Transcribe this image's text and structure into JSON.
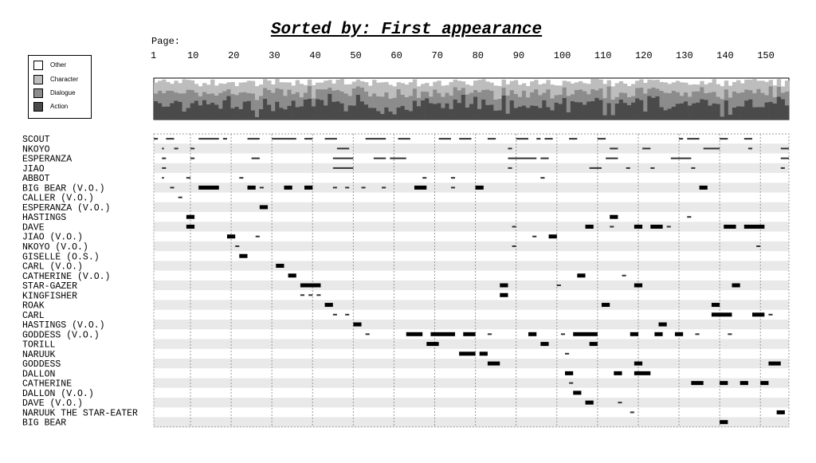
{
  "chart_data": {
    "type": "timeline",
    "title": "Sorted by: First appearance",
    "xlabel": "Page:",
    "x_ticks": [
      1,
      10,
      20,
      30,
      40,
      50,
      60,
      70,
      80,
      90,
      100,
      110,
      120,
      130,
      140,
      150
    ],
    "xlim": [
      1,
      157
    ],
    "legend": {
      "placement": "top-left",
      "items": [
        {
          "label": "Other",
          "color": "#ffffff"
        },
        {
          "label": "Character",
          "color": "#bdbdbd"
        },
        {
          "label": "Dialogue",
          "color": "#8c8c8c"
        },
        {
          "label": "Action",
          "color": "#4a4a4a"
        }
      ]
    },
    "page_composition_note_levels": [
      "Other",
      "Character",
      "Dialogue",
      "Action"
    ],
    "characters": [
      "SCOUT",
      "NKOYO",
      "ESPERANZA",
      "JIAO",
      "ABBOT",
      "BIG BEAR (V.O.)",
      "CALLER (V.O.)",
      "ESPERANZA (V.O.)",
      "HASTINGS",
      "DAVE",
      "JIAO (V.O.)",
      "NKOYO (V.O.)",
      "GISELLE (O.S.)",
      "CARL (V.O.)",
      "CATHERINE (V.O.)",
      "STAR-GAZER",
      "KINGFISHER",
      "ROAK",
      "CARL",
      "HASTINGS (V.O.)",
      "GODDESS (V.O.)",
      "TORILL",
      "NARUUK",
      "GODDESS",
      "DALLON",
      "CATHERINE",
      "DALLON (V.O.)",
      "DAVE (V.O.)",
      "NARUUK THE STAR-EATER",
      "BIG BEAR"
    ],
    "appearances": [
      [
        [
          1,
          2
        ],
        [
          4,
          6
        ],
        [
          12,
          17
        ],
        [
          18,
          19
        ],
        [
          24,
          27
        ],
        [
          30,
          36
        ],
        [
          38,
          40
        ],
        [
          43,
          46
        ],
        [
          53,
          58
        ],
        [
          61,
          64
        ],
        [
          71,
          74
        ],
        [
          76,
          79
        ],
        [
          83,
          85
        ],
        [
          90,
          93
        ],
        [
          95,
          96
        ],
        [
          97,
          99
        ],
        [
          103,
          105
        ],
        [
          110,
          112
        ],
        [
          130,
          131
        ],
        [
          132,
          135
        ],
        [
          140,
          142
        ],
        [
          146,
          148
        ]
      ],
      [
        [
          3,
          3.5
        ],
        [
          6,
          7
        ],
        [
          10,
          11
        ],
        [
          46,
          49
        ],
        [
          88,
          89
        ],
        [
          113,
          115
        ],
        [
          121,
          123
        ],
        [
          136,
          140
        ],
        [
          147,
          148
        ],
        [
          155,
          157
        ]
      ],
      [
        [
          3,
          4
        ],
        [
          10,
          11
        ],
        [
          25,
          27
        ],
        [
          45,
          50
        ],
        [
          55,
          58
        ],
        [
          59,
          63
        ],
        [
          88,
          95
        ],
        [
          96,
          98
        ],
        [
          112,
          115
        ],
        [
          128,
          133
        ],
        [
          155,
          157
        ]
      ],
      [
        [
          3,
          4
        ],
        [
          45,
          50
        ],
        [
          88,
          89
        ],
        [
          108,
          111
        ],
        [
          117,
          118
        ],
        [
          123,
          124
        ],
        [
          133,
          134
        ],
        [
          155,
          156
        ]
      ],
      [
        [
          3,
          3.5
        ],
        [
          9,
          10
        ],
        [
          22,
          23
        ],
        [
          67,
          68
        ],
        [
          74,
          75
        ],
        [
          96,
          97
        ]
      ],
      [
        [
          5,
          6
        ],
        [
          12,
          17
        ],
        [
          24,
          26
        ],
        [
          27,
          28
        ],
        [
          33,
          35
        ],
        [
          38,
          40
        ],
        [
          45,
          46
        ],
        [
          48,
          49
        ],
        [
          52,
          53
        ],
        [
          57,
          58
        ],
        [
          65,
          68
        ],
        [
          74,
          75
        ],
        [
          80,
          82
        ],
        [
          135,
          137
        ]
      ],
      [
        [
          7,
          8
        ]
      ],
      [
        [
          27,
          29
        ]
      ],
      [
        [
          9,
          11
        ],
        [
          113,
          115
        ],
        [
          132,
          133
        ]
      ],
      [
        [
          9,
          11
        ],
        [
          89,
          90
        ],
        [
          107,
          109
        ],
        [
          113,
          114
        ],
        [
          119,
          121
        ],
        [
          123,
          126
        ],
        [
          127,
          128
        ],
        [
          141,
          144
        ],
        [
          146,
          151
        ]
      ],
      [
        [
          19,
          21
        ],
        [
          26,
          27
        ],
        [
          94,
          95
        ],
        [
          98,
          100
        ]
      ],
      [
        [
          21,
          22
        ],
        [
          89,
          90
        ],
        [
          149,
          150
        ]
      ],
      [
        [
          22,
          24
        ]
      ],
      [
        [
          31,
          33
        ]
      ],
      [
        [
          34,
          36
        ],
        [
          105,
          107
        ],
        [
          116,
          117
        ]
      ],
      [
        [
          37,
          42
        ],
        [
          86,
          88
        ],
        [
          100,
          101
        ],
        [
          119,
          121
        ],
        [
          143,
          145
        ]
      ],
      [
        [
          37,
          38
        ],
        [
          39,
          40
        ],
        [
          41,
          42
        ],
        [
          86,
          88
        ]
      ],
      [
        [
          43,
          45
        ],
        [
          111,
          113
        ],
        [
          138,
          140
        ]
      ],
      [
        [
          45,
          46
        ],
        [
          48,
          49
        ],
        [
          138,
          143
        ],
        [
          148,
          151
        ],
        [
          152,
          153
        ]
      ],
      [
        [
          50,
          52
        ],
        [
          125,
          127
        ]
      ],
      [
        [
          53,
          54
        ],
        [
          63,
          67
        ],
        [
          69,
          75
        ],
        [
          77,
          80
        ],
        [
          83,
          84
        ],
        [
          93,
          95
        ],
        [
          101,
          102
        ],
        [
          104,
          110
        ],
        [
          118,
          120
        ],
        [
          124,
          126
        ],
        [
          129,
          131
        ],
        [
          134,
          135
        ],
        [
          142,
          143
        ]
      ],
      [
        [
          68,
          71
        ],
        [
          96,
          98
        ],
        [
          108,
          110
        ]
      ],
      [
        [
          76,
          80
        ],
        [
          81,
          83
        ],
        [
          102,
          103
        ]
      ],
      [
        [
          83,
          86
        ],
        [
          119,
          121
        ],
        [
          152,
          155
        ]
      ],
      [
        [
          102,
          104
        ],
        [
          114,
          116
        ],
        [
          119,
          123
        ]
      ],
      [
        [
          103,
          104
        ],
        [
          133,
          136
        ],
        [
          140,
          142
        ],
        [
          145,
          147
        ],
        [
          150,
          152
        ]
      ],
      [
        [
          104,
          106
        ]
      ],
      [
        [
          107,
          109
        ],
        [
          115,
          116
        ]
      ],
      [
        [
          118,
          119
        ],
        [
          154,
          156
        ]
      ],
      [
        [
          140,
          142
        ]
      ]
    ]
  }
}
